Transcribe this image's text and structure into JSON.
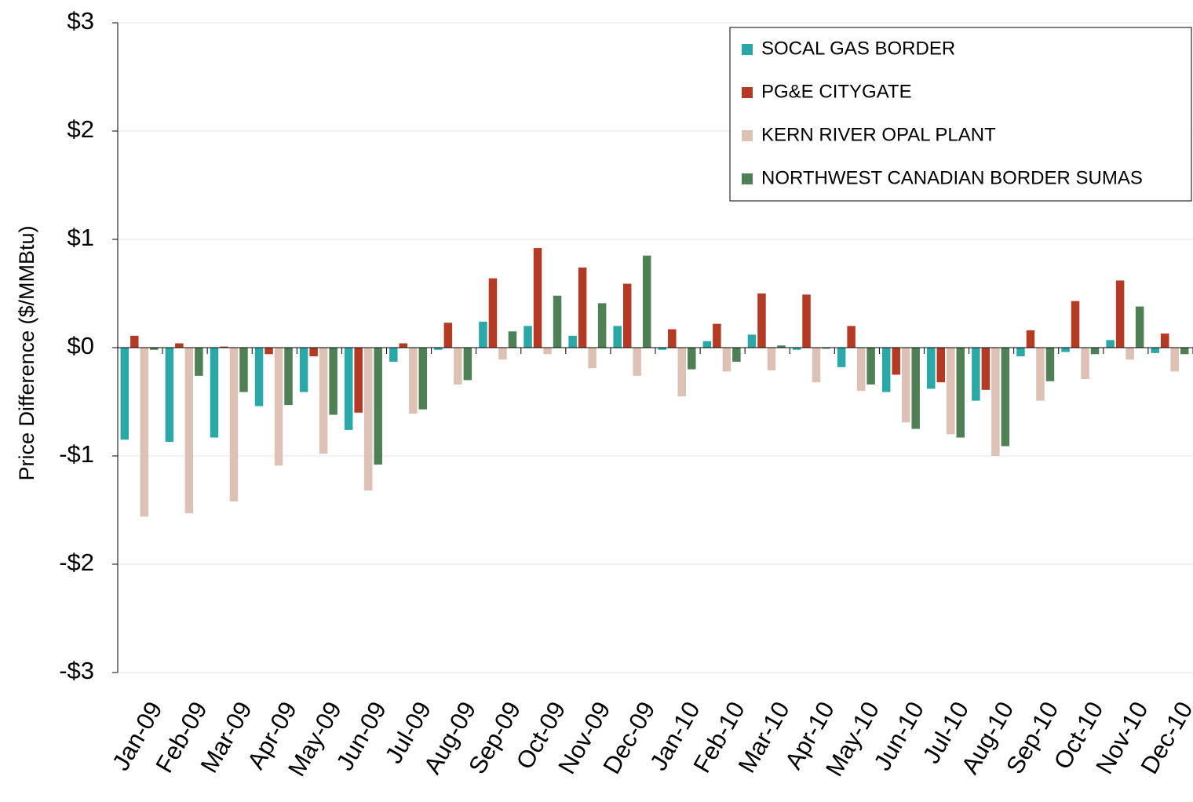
{
  "chart_data": {
    "type": "bar",
    "y_label": "Price Difference  ($/MMBtu)",
    "categories": [
      "Jan-09",
      "Feb-09",
      "Mar-09",
      "Apr-09",
      "May-09",
      "Jun-09",
      "Jul-09",
      "Aug-09",
      "Sep-09",
      "Oct-09",
      "Nov-09",
      "Dec-09",
      "Jan-10",
      "Feb-10",
      "Mar-10",
      "Apr-10",
      "May-10",
      "Jun-10",
      "Jul-10",
      "Aug-10",
      "Sep-10",
      "Oct-10",
      "Nov-10",
      "Dec-10"
    ],
    "series": [
      {
        "name": "SOCAL GAS BORDER",
        "color": "#2aa8a8",
        "values": [
          -0.85,
          -0.87,
          -0.83,
          -0.54,
          -0.41,
          -0.76,
          -0.13,
          -0.02,
          0.24,
          0.2,
          0.11,
          0.2,
          -0.02,
          0.06,
          0.12,
          -0.02,
          -0.18,
          -0.41,
          -0.38,
          -0.49,
          -0.08,
          -0.04,
          0.07,
          -0.05
        ]
      },
      {
        "name": "PG&E CITYGATE",
        "color": "#b53a24",
        "values": [
          0.11,
          0.04,
          0.01,
          -0.06,
          -0.08,
          -0.6,
          0.04,
          0.23,
          0.64,
          0.92,
          0.74,
          0.59,
          0.17,
          0.22,
          0.5,
          0.49,
          0.2,
          -0.25,
          -0.32,
          -0.39,
          0.16,
          0.43,
          0.62,
          0.13
        ]
      },
      {
        "name": "KERN RIVER OPAL PLANT",
        "color": "#dcc1b4",
        "values": [
          -1.56,
          -1.53,
          -1.42,
          -1.09,
          -0.98,
          -1.32,
          -0.61,
          -0.34,
          -0.11,
          -0.06,
          -0.19,
          -0.26,
          -0.45,
          -0.22,
          -0.21,
          -0.32,
          -0.4,
          -0.69,
          -0.8,
          -1.0,
          -0.49,
          -0.29,
          -0.11,
          -0.22
        ]
      },
      {
        "name": "NORTHWEST CANADIAN BORDER SUMAS",
        "color": "#4f7f55",
        "values": [
          -0.02,
          -0.26,
          -0.41,
          -0.53,
          -0.62,
          -1.08,
          -0.57,
          -0.3,
          0.15,
          0.48,
          0.41,
          0.85,
          -0.2,
          -0.13,
          0.02,
          -0.01,
          -0.34,
          -0.75,
          -0.83,
          -0.91,
          -0.31,
          -0.06,
          0.38,
          -0.06
        ]
      }
    ],
    "ylim": [
      -3,
      3
    ],
    "yticks": [
      {
        "value": -3,
        "label": "-$3"
      },
      {
        "value": -2,
        "label": "-$2"
      },
      {
        "value": -1,
        "label": "-$1"
      },
      {
        "value": 0,
        "label": "$0"
      },
      {
        "value": 1,
        "label": "$1"
      },
      {
        "value": 2,
        "label": "$2"
      },
      {
        "value": 3,
        "label": "$3"
      }
    ],
    "grid": true,
    "legend": "top-right"
  }
}
